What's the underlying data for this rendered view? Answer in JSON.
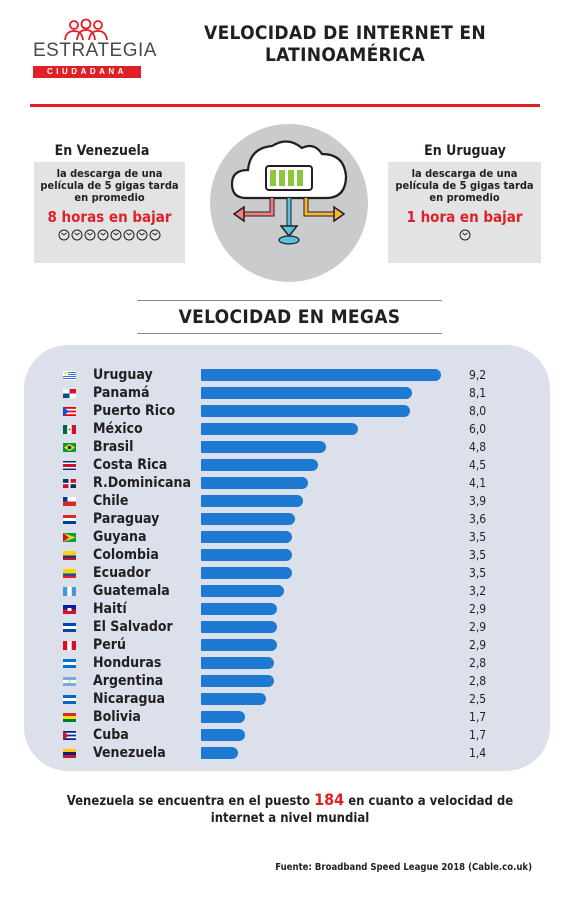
{
  "logo": {
    "name": "ESTRATEGIA",
    "tagline": "CIUDADANA",
    "icon": "people-group-icon",
    "color": "#e11f26"
  },
  "title_line1": "VELOCIDAD DE INTERNET EN",
  "title_line2": "LATINOAMÉRICA",
  "venezuela_card": {
    "label": "En Venezuela",
    "line1": "la descarga de una",
    "line2": "película de 5 gigas tarda",
    "line3": "en promedio",
    "time": "8 horas en bajar",
    "clock_count": 8
  },
  "uruguay_card": {
    "label": "En Uruguay",
    "line1": "la descarga de una",
    "line2": "película de 5 gigas tarda",
    "line3": "en promedio",
    "time": "1 hora en bajar",
    "clock_count": 1
  },
  "center_icon": "cloud-download-icon",
  "section_title": "VELOCIDAD EN MEGAS",
  "chart_data": {
    "type": "bar",
    "orientation": "horizontal",
    "categories": [
      "Uruguay",
      "Panamá",
      "Puerto Rico",
      "México",
      "Brasil",
      "Costa Rica",
      "R.Dominicana",
      "Chile",
      "Paraguay",
      "Guyana",
      "Colombia",
      "Ecuador",
      "Guatemala",
      "Haití",
      "El Salvador",
      "Perú",
      "Honduras",
      "Argentina",
      "Nicaragua",
      "Bolivia",
      "Cuba",
      "Venezuela"
    ],
    "values": [
      9.2,
      8.1,
      8.0,
      6.0,
      4.8,
      4.5,
      4.1,
      3.9,
      3.6,
      3.5,
      3.5,
      3.5,
      3.2,
      2.9,
      2.9,
      2.9,
      2.8,
      2.8,
      2.5,
      1.7,
      1.7,
      1.4
    ],
    "labels": [
      "9,2",
      "8,1",
      "8,0",
      "6,0",
      "4,8",
      "4,5",
      "4,1",
      "3,9",
      "3,6",
      "3,5",
      "3,5",
      "3,5",
      "3,2",
      "2,9",
      "2,9",
      "2,9",
      "2,8",
      "2,8",
      "2,5",
      "1,7",
      "1,7",
      "1,4"
    ],
    "bar_color": "#1d79d2"
  },
  "footer": {
    "before": "Venezuela se encuentra en el puesto",
    "rank": "184",
    "after": "en cuanto a velocidad de",
    "line2": "internet a nivel mundial"
  },
  "source": "Fuente:  Broadband Speed League 2018 (Cable.co.uk)"
}
